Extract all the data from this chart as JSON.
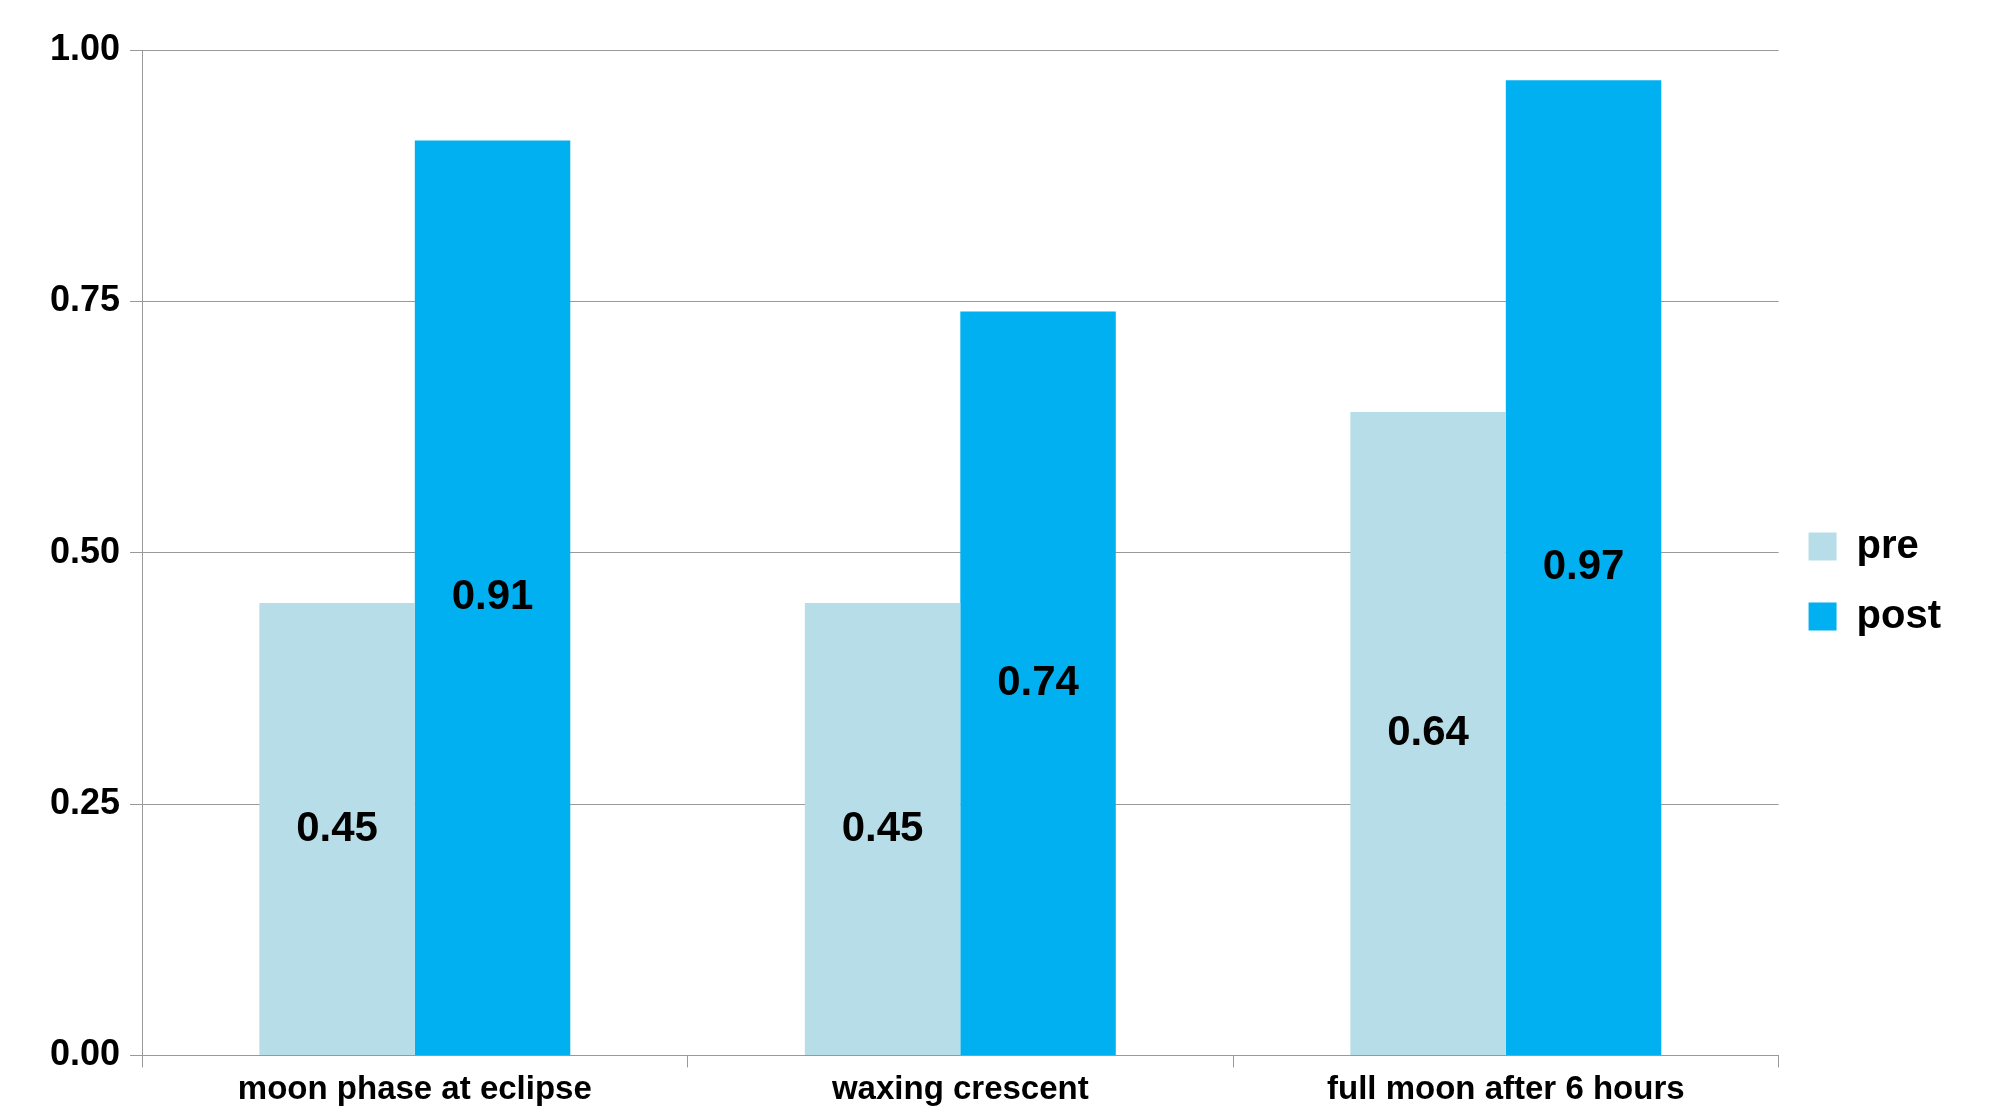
{
  "chart_data": {
    "type": "bar",
    "categories": [
      "moon phase at eclipse",
      "waxing crescent",
      "full moon after 6 hours"
    ],
    "series": [
      {
        "name": "pre",
        "color": "#b7dde8",
        "values": [
          0.45,
          0.45,
          0.64
        ]
      },
      {
        "name": "post",
        "color": "#00b0f0",
        "values": [
          0.91,
          0.74,
          0.97
        ]
      }
    ],
    "ylim": [
      0,
      1
    ],
    "yticks": [
      {
        "value": 0,
        "label": "0.00"
      },
      {
        "value": 0.25,
        "label": "0.25"
      },
      {
        "value": 0.5,
        "label": "0.50"
      },
      {
        "value": 0.75,
        "label": "0.75"
      },
      {
        "value": 1,
        "label": "1.00"
      }
    ],
    "grid": "y",
    "legend": "right",
    "data_labels": true
  }
}
